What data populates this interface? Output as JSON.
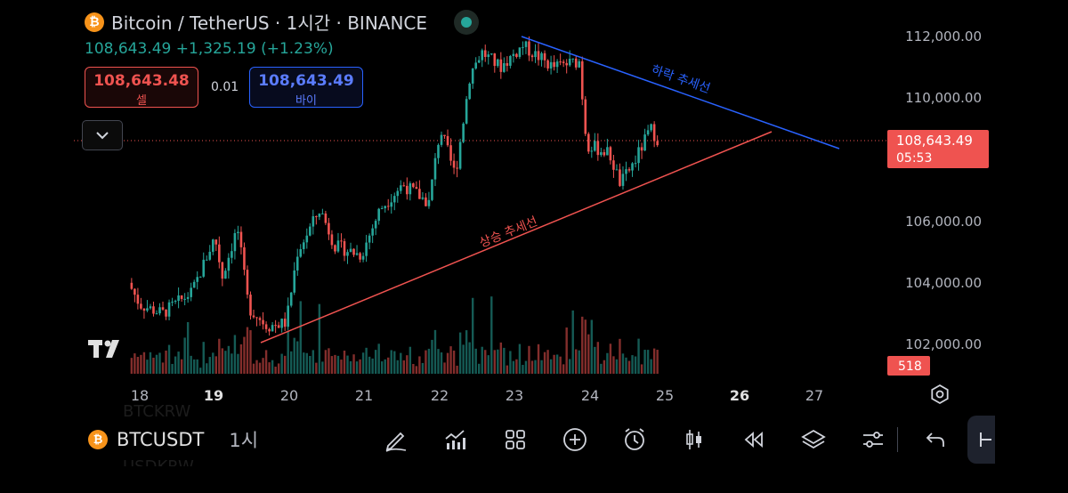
{
  "header": {
    "title": "Bitcoin / TetherUS · 1시간 · BINANCE",
    "price_line": "108,643.49  +1,325.19 (+1.23%)"
  },
  "trade": {
    "sell_price": "108,643.48",
    "sell_label": "셀",
    "spread": "0.01",
    "buy_price": "108,643.49",
    "buy_label": "바이"
  },
  "price_axis": {
    "labels": [
      "112,000.00",
      "110,000.00",
      "106,000.00",
      "104,000.00",
      "102,000.00"
    ],
    "last_price": "108,643.49",
    "countdown": "05:53",
    "volume_badge": "518"
  },
  "time_axis": {
    "labels": [
      "18",
      "19",
      "20",
      "21",
      "22",
      "23",
      "24",
      "25",
      "26",
      "27"
    ]
  },
  "annotations": {
    "down_trend": "하락 추세선",
    "up_trend": "상승 추세선"
  },
  "bottom_bar": {
    "symbol": "BTCUSDT",
    "timeframe": "1시",
    "tools": [
      "draw-pen-icon",
      "indicators-icon",
      "layouts-grid-icon",
      "add-icon",
      "alert-clock-icon",
      "candle-style-icon",
      "replay-icon",
      "layers-icon",
      "settings-sliders-icon"
    ]
  },
  "colors": {
    "up": "#26a69a",
    "down": "#ef5350",
    "down_trendline": "#2962ff",
    "up_trendline": "#ef5350"
  },
  "chart_data": {
    "type": "candlestick",
    "symbol": "BTCUSDT",
    "interval": "1h",
    "close_path": [
      {
        "day": 17.85,
        "price": 104000
      },
      {
        "day": 18.0,
        "price": 103300
      },
      {
        "day": 18.3,
        "price": 103000
      },
      {
        "day": 18.7,
        "price": 103700
      },
      {
        "day": 19.0,
        "price": 105500
      },
      {
        "day": 19.1,
        "price": 104200
      },
      {
        "day": 19.3,
        "price": 105800
      },
      {
        "day": 19.45,
        "price": 103200
      },
      {
        "day": 19.7,
        "price": 102600
      },
      {
        "day": 19.95,
        "price": 102700
      },
      {
        "day": 20.1,
        "price": 105000
      },
      {
        "day": 20.4,
        "price": 106400
      },
      {
        "day": 20.6,
        "price": 105200
      },
      {
        "day": 20.95,
        "price": 104900
      },
      {
        "day": 21.2,
        "price": 106400
      },
      {
        "day": 21.5,
        "price": 107200
      },
      {
        "day": 21.85,
        "price": 106600
      },
      {
        "day": 22.0,
        "price": 109000
      },
      {
        "day": 22.2,
        "price": 107500
      },
      {
        "day": 22.4,
        "price": 110800
      },
      {
        "day": 22.55,
        "price": 111500
      },
      {
        "day": 22.8,
        "price": 111000
      },
      {
        "day": 23.1,
        "price": 111700
      },
      {
        "day": 23.5,
        "price": 111000
      },
      {
        "day": 23.85,
        "price": 111200
      },
      {
        "day": 23.95,
        "price": 108500
      },
      {
        "day": 24.25,
        "price": 108200
      },
      {
        "day": 24.4,
        "price": 107200
      },
      {
        "day": 24.6,
        "price": 108000
      },
      {
        "day": 24.8,
        "price": 109000
      },
      {
        "day": 24.9,
        "price": 108643.49
      }
    ],
    "xlim": [
      "17 12:00",
      "27 12:00"
    ],
    "ylim": [
      101000,
      112500
    ],
    "last_price": 108643.49,
    "trendlines": [
      {
        "name": "하락 추세선",
        "from": {
          "day": 23.1,
          "price": 112000
        },
        "to": {
          "day": 27.3,
          "price": 108100
        }
      },
      {
        "name": "상승 추세선",
        "from": {
          "day": 19.65,
          "price": 101800
        },
        "to": {
          "day": 26.4,
          "price": 109300
        }
      }
    ],
    "grid": false
  }
}
